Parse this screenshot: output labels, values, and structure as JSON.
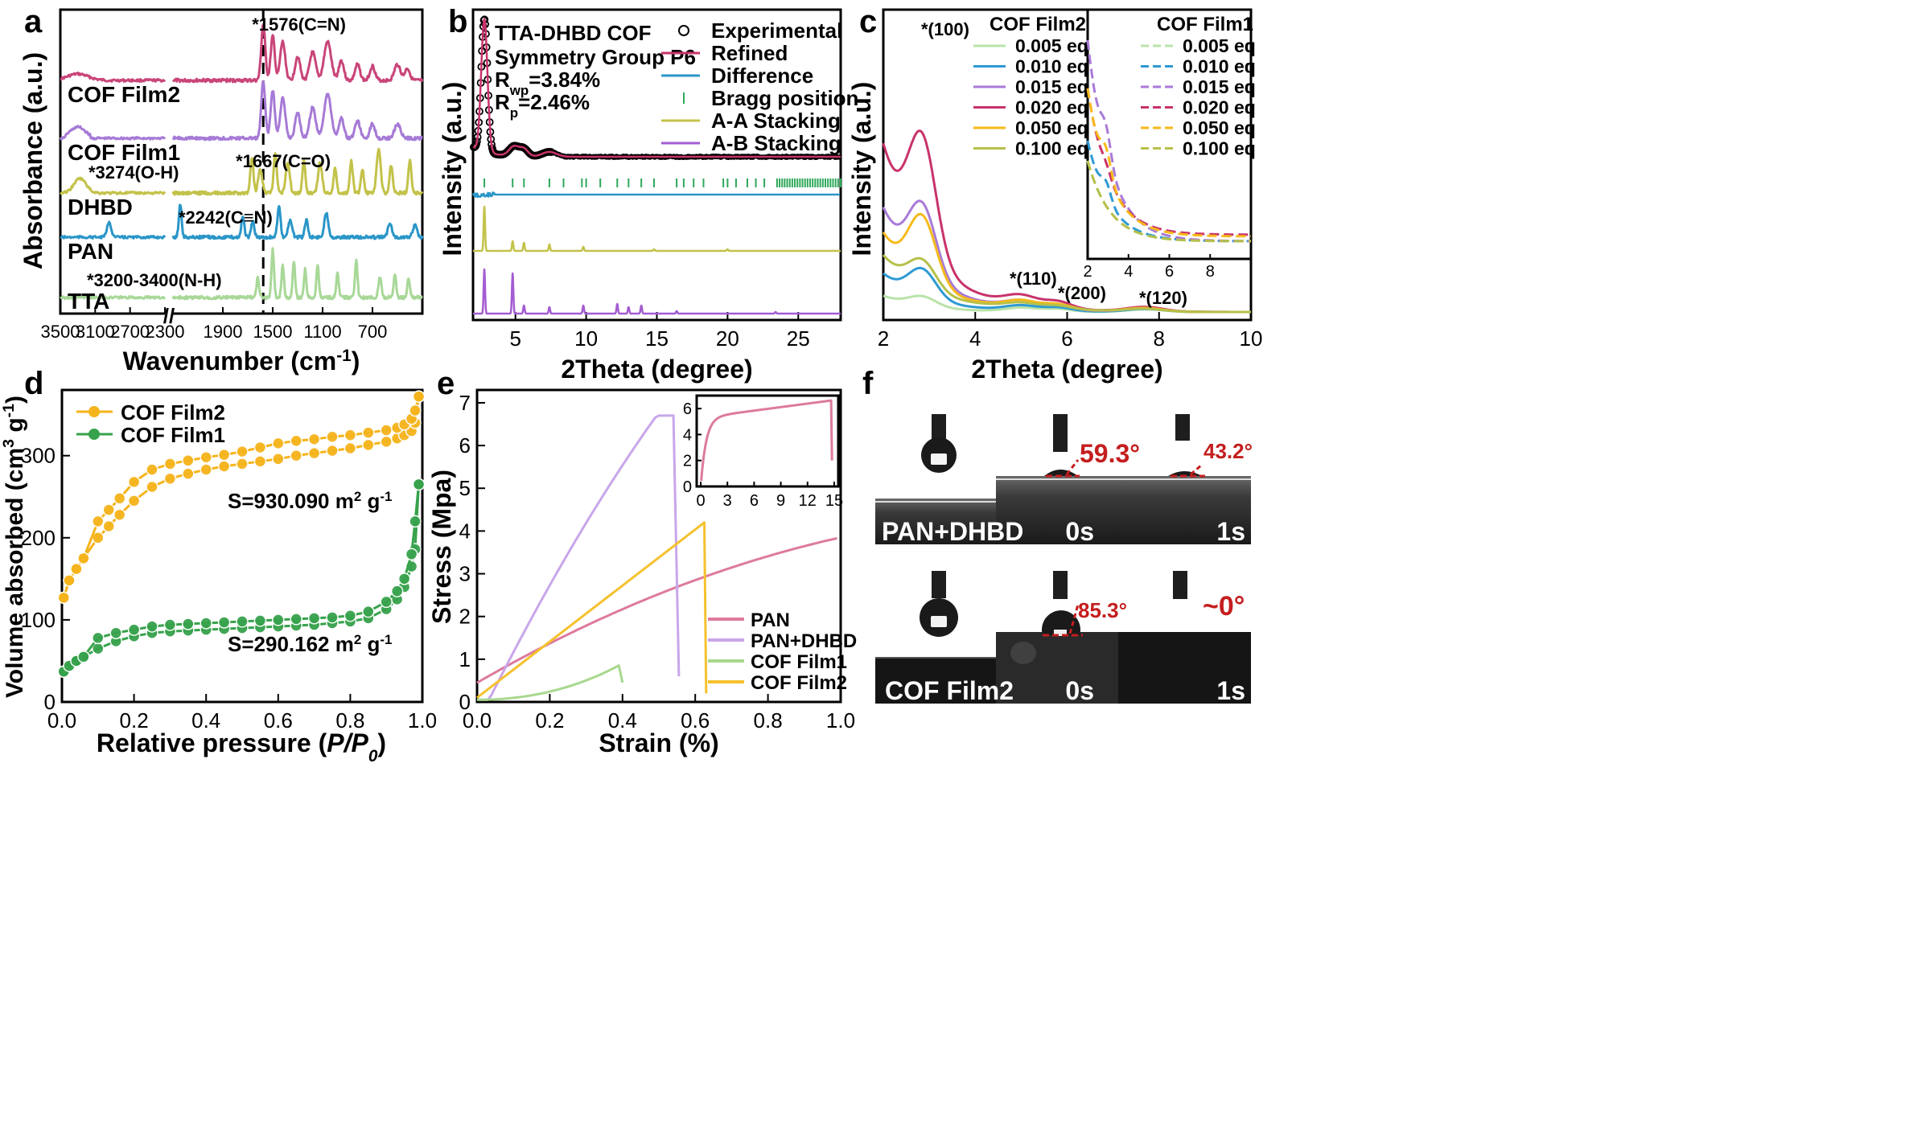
{
  "panel_letters": {
    "a": "a",
    "b": "b",
    "c": "c",
    "d": "d",
    "e": "e",
    "f": "f"
  },
  "colors": {
    "film2": "#c94579",
    "film1": "#a67ad6",
    "dhbd": "#c3c24a",
    "pan": "#2a96c8",
    "tta": "#a8d898",
    "pan_pink": "#dd7a9e",
    "pan_dhbd": "#c9a6ea",
    "film1_green": "#a8d88e",
    "film2_yellow": "#f5c12e",
    "xrd_black": "#000000",
    "xrd_refined": "#c8336b",
    "xrd_diff": "#2a96c8",
    "xrd_bragg": "#2fa85a",
    "xrd_aa": "#c3c24a",
    "xrd_ab": "#a35cd2",
    "iso_film2": "#f5b41c",
    "iso_film1": "#37a24c",
    "conc": [
      "#b9e3a8",
      "#2e9ad3",
      "#a97ad8",
      "#c8336b",
      "#f6ba1a",
      "#b6c04a"
    ],
    "angle": "#c41e1e"
  },
  "chart_data": [
    {
      "panel": "a",
      "type": "line",
      "xlabel": "Wavenumber (cm",
      "xlabel_sup": "-1",
      "xlabel_end": ")",
      "ylabel": "Absorbance (a.u.)",
      "xticks_left": [
        "3500",
        "3100",
        "2700",
        "2300"
      ],
      "xticks_right": [
        "1900",
        "1500",
        "1100",
        "700"
      ],
      "xlim_left": [
        3500,
        2300
      ],
      "xlim_right": [
        2300,
        300
      ],
      "break_mark": "//",
      "dashed_line_x": 1576,
      "series": [
        {
          "name": "COF Film2",
          "color_key": "film2",
          "offset": 0
        },
        {
          "name": "COF Film1",
          "color_key": "film1",
          "offset": 1
        },
        {
          "name": "DHBD",
          "color_key": "dhbd",
          "offset": 2
        },
        {
          "name": "PAN",
          "color_key": "pan",
          "offset": 3
        },
        {
          "name": "TTA",
          "color_key": "tta",
          "offset": 4
        }
      ],
      "annotations": [
        "*1576(C=N)",
        "*1667(C=O)",
        "*3274(O-H)",
        "*2242(C≡N)",
        "*3200-3400(N-H)"
      ]
    },
    {
      "panel": "b",
      "type": "line",
      "xlabel": "2Theta (degree)",
      "ylabel": "Intensity (a.u.)",
      "xlim": [
        2,
        28
      ],
      "xticks": [
        "5",
        "10",
        "15",
        "20",
        "25"
      ],
      "info": {
        "line1": "TTA-DHBD COF",
        "line2": "Symmetry Group P6",
        "rwp_main": "R",
        "rwp_sub": "wp",
        "rwp_val": "=3.84%",
        "rp_main": "R",
        "rp_sub": "p",
        "rp_val": "=2.46%"
      },
      "legend": [
        {
          "name": "Experimental",
          "kind": "circle",
          "color_key": "xrd_black"
        },
        {
          "name": "Refined",
          "kind": "line",
          "color_key": "xrd_refined"
        },
        {
          "name": "Difference",
          "kind": "line",
          "color_key": "xrd_diff"
        },
        {
          "name": "Bragg position",
          "kind": "tick",
          "color_key": "xrd_bragg"
        },
        {
          "name": "A-A Stacking",
          "kind": "line",
          "color_key": "xrd_aa"
        },
        {
          "name": "A-B Stacking",
          "kind": "line",
          "color_key": "xrd_ab"
        }
      ],
      "peaks_aa": [
        2.8,
        4.8,
        5.6,
        7.4,
        9.8,
        14.8,
        20.0
      ],
      "peaks_ab": [
        2.8,
        4.8,
        5.6,
        7.4,
        9.8,
        12.2,
        13.0,
        13.9,
        16.4,
        23.4
      ]
    },
    {
      "panel": "c",
      "type": "line",
      "xlabel": "2Theta (degree)",
      "ylabel": "Intensity (a.u.)",
      "xlim": [
        2,
        10
      ],
      "xticks": [
        "2",
        "4",
        "6",
        "8",
        "10"
      ],
      "series": [
        {
          "name": "0.005 eq",
          "peak": 0.3
        },
        {
          "name": "0.010 eq",
          "peak": 0.65
        },
        {
          "name": "0.015 eq",
          "peak": 2.4
        },
        {
          "name": "0.020 eq",
          "peak": 4.2
        },
        {
          "name": "0.050 eq",
          "peak": 2.0
        },
        {
          "name": "0.100 eq",
          "peak": 1.3
        }
      ],
      "legend_title_film2": "COF Film2",
      "legend_title_film1": "COF Film1",
      "annotations": [
        "*(100)",
        "*(110)",
        "*(200)",
        "*(120)"
      ],
      "inset": {
        "xlim": [
          2,
          10
        ],
        "xticks": [
          "2",
          "4",
          "6",
          "8"
        ]
      }
    },
    {
      "panel": "d",
      "type": "line",
      "xlabel_pre": "Relative pressure (",
      "xlabel_italic": "P/P",
      "xlabel_sub": "0",
      "xlabel_end": ")",
      "ylabel_pre": "Volume absorbed (cm",
      "ylabel_sup": "3",
      "ylabel_mid": " g",
      "ylabel_sup2": "-1",
      "ylabel_end": ")",
      "xlim": [
        0,
        1
      ],
      "ylim": [
        0,
        380
      ],
      "xticks": [
        "0.0",
        "0.2",
        "0.4",
        "0.6",
        "0.8",
        "1.0"
      ],
      "yticks": [
        "0",
        "100",
        "200",
        "300"
      ],
      "series": [
        {
          "name": "COF Film2",
          "color_key": "iso_film2",
          "x": [
            0.005,
            0.02,
            0.04,
            0.06,
            0.1,
            0.13,
            0.16,
            0.2,
            0.25,
            0.3,
            0.35,
            0.4,
            0.45,
            0.5,
            0.55,
            0.6,
            0.65,
            0.7,
            0.75,
            0.8,
            0.85,
            0.9,
            0.93,
            0.95,
            0.97,
            0.98,
            0.99
          ],
          "ads": [
            127,
            148,
            162,
            175,
            200,
            214,
            228,
            245,
            262,
            272,
            278,
            283,
            287,
            290,
            293,
            296,
            300,
            303,
            306,
            309,
            313,
            317,
            321,
            325,
            330,
            340,
            372
          ],
          "des": [
            127,
            148,
            162,
            175,
            220,
            234,
            248,
            268,
            283,
            290,
            294,
            298,
            301,
            305,
            310,
            315,
            318,
            320,
            323,
            325,
            328,
            331,
            334,
            338,
            345,
            355,
            372
          ]
        },
        {
          "name": "COF Film1",
          "color_key": "iso_film1",
          "x": [
            0.005,
            0.02,
            0.04,
            0.06,
            0.1,
            0.15,
            0.2,
            0.25,
            0.3,
            0.35,
            0.4,
            0.45,
            0.5,
            0.55,
            0.6,
            0.65,
            0.7,
            0.75,
            0.8,
            0.85,
            0.9,
            0.93,
            0.95,
            0.97,
            0.98,
            0.99
          ],
          "ads": [
            37,
            44,
            50,
            55,
            65,
            74,
            80,
            84,
            86,
            87,
            88,
            89,
            90,
            91,
            92,
            93,
            94,
            96,
            98,
            102,
            113,
            125,
            140,
            165,
            186,
            265
          ],
          "des": [
            37,
            44,
            50,
            55,
            78,
            84,
            88,
            92,
            94,
            95,
            96,
            97,
            98,
            99,
            100,
            101,
            102,
            103,
            105,
            110,
            122,
            135,
            150,
            180,
            220,
            265
          ]
        }
      ],
      "annotations": {
        "film2_base": "S=930.090 m",
        "film2_sup": "2",
        "film2_end": " g",
        "film2_sup2": "-1",
        "film1_base": "S=290.162 m",
        "film1_sup": "2",
        "film1_end": " g",
        "film1_sup2": "-1"
      }
    },
    {
      "panel": "e",
      "type": "line",
      "xlabel": "Strain (%)",
      "ylabel": "Stress (Mpa)",
      "xlim": [
        0,
        1
      ],
      "ylim": [
        0,
        7.3
      ],
      "xticks": [
        "0.0",
        "0.2",
        "0.4",
        "0.6",
        "0.8",
        "1.0"
      ],
      "yticks": [
        "0",
        "1",
        "2",
        "3",
        "4",
        "5",
        "6",
        "7"
      ],
      "series": [
        {
          "name": "PAN",
          "color_key": "pan_pink"
        },
        {
          "name": "PAN+DHBD",
          "color_key": "pan_dhbd"
        },
        {
          "name": "COF Film1",
          "color_key": "film1_green"
        },
        {
          "name": "COF Film2",
          "color_key": "film2_yellow"
        }
      ],
      "inset": {
        "xlim": [
          0,
          15
        ],
        "ylim": [
          0,
          7
        ],
        "xticks": [
          "0",
          "3",
          "6",
          "9",
          "12",
          "15"
        ],
        "yticks": [
          "0",
          "2",
          "4",
          "6"
        ]
      }
    }
  ],
  "panel_f": {
    "row1_label": "PAN+DHBD",
    "row2_label": "COF Film2",
    "time0": "0s",
    "time1": "1s",
    "angles": {
      "r1_0": "59.3°",
      "r1_1": "43.2°",
      "r2_0": "85.3°",
      "r2_1": "~0°"
    }
  }
}
